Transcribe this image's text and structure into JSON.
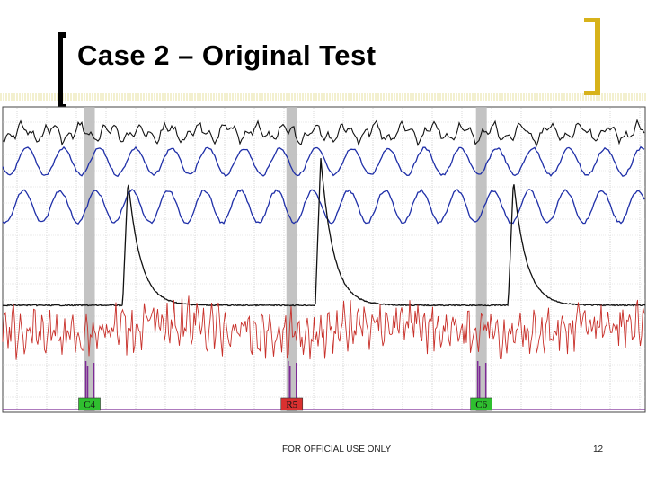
{
  "slide": {
    "title": "Case 2 – Original Test",
    "footer": "FOR OFFICIAL USE ONLY",
    "page_number": "12"
  },
  "chart_data": {
    "type": "line",
    "grid": true,
    "x_range": [
      0,
      100
    ],
    "questions": [
      {
        "label": "C4",
        "x": 13.5,
        "color": "#2fbf2f"
      },
      {
        "label": "R5",
        "x": 45.0,
        "color": "#d93030"
      },
      {
        "label": "C6",
        "x": 74.5,
        "color": "#2fbf2f"
      }
    ],
    "channels": [
      {
        "name": "upper-respiration",
        "color": "#111111"
      },
      {
        "name": "respiration-2",
        "color": "#1f2fa8"
      },
      {
        "name": "lower-respiration",
        "color": "#1f2fa8"
      },
      {
        "name": "electrodermal",
        "color": "#111111"
      },
      {
        "name": "cardio",
        "color": "#c8302a"
      },
      {
        "name": "event-marker",
        "color": "#7d2a96"
      }
    ],
    "eda_peaks": [
      {
        "x": 19.5,
        "height": 0.85
      },
      {
        "x": 49.5,
        "height": 1.0
      },
      {
        "x": 79.5,
        "height": 0.85
      }
    ]
  }
}
